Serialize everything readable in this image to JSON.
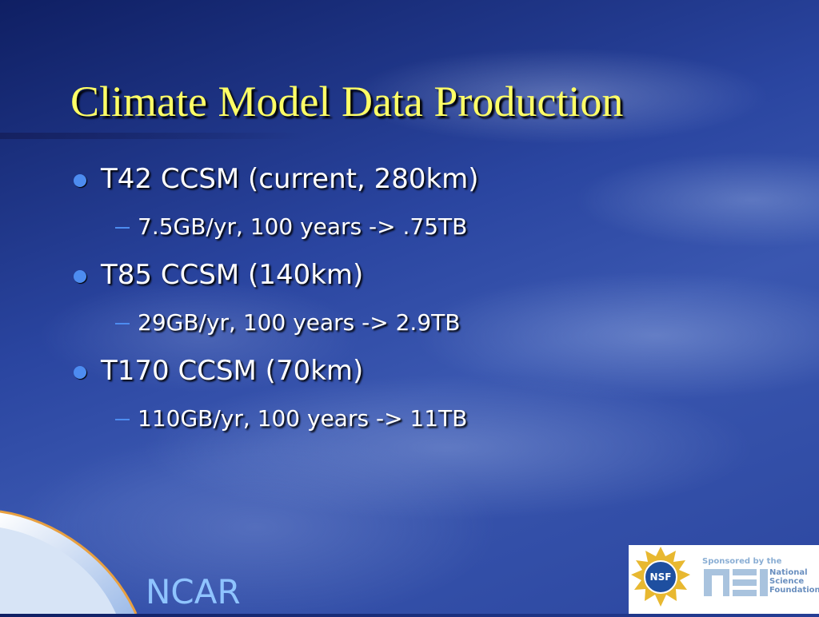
{
  "title": "Climate Model Data Production",
  "bullets": [
    {
      "text": "T42 CCSM (current, 280km)",
      "sub": [
        "7.5GB/yr, 100 years -> .75TB"
      ]
    },
    {
      "text": "T85 CCSM (140km)",
      "sub": [
        "29GB/yr, 100 years -> 2.9TB"
      ]
    },
    {
      "text": "T170 CCSM (70km)",
      "sub": [
        "110GB/yr, 100 years -> 11TB"
      ]
    }
  ],
  "footer": {
    "label": "NCAR"
  },
  "sponsor": {
    "seal": "NSF",
    "lines": [
      "Sponsored by the",
      "National",
      "Science",
      "Foundation"
    ]
  }
}
